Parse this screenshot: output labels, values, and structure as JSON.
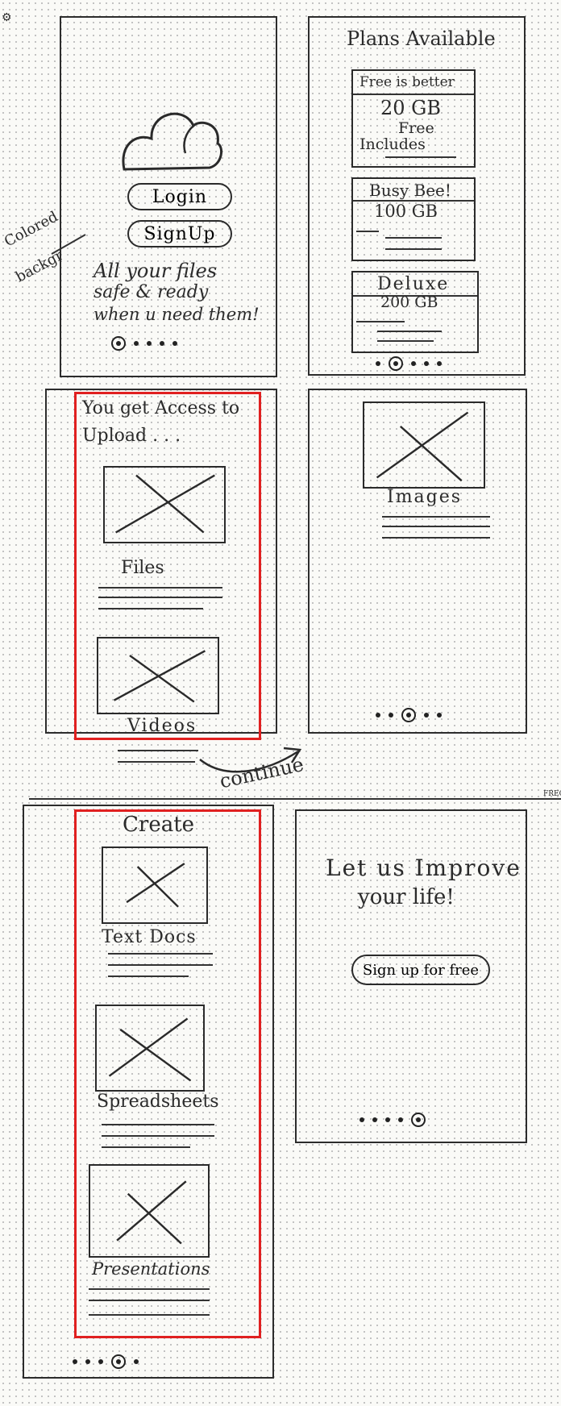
{
  "note": {
    "line1": "Colored",
    "line2": "backgr"
  },
  "screen1": {
    "login_label": "Login",
    "signup_label": "SignUp",
    "tagline_lines": [
      "All your files",
      "safe & ready",
      "when u need them!"
    ]
  },
  "screen2": {
    "title": "Plans Available",
    "plans": [
      {
        "name": "Free is better",
        "size": "20 GB",
        "line2": "Free",
        "line3": "Includes"
      },
      {
        "name": "Busy Bee!",
        "size": "100 GB"
      },
      {
        "name": "Deluxe",
        "size": "200 GB"
      }
    ]
  },
  "screen3": {
    "heading_lines": [
      "You get Access to",
      "Upload . . ."
    ],
    "items": [
      "Files",
      "Videos"
    ]
  },
  "screen4": {
    "item": "Images"
  },
  "continue_label": "continue",
  "screen5": {
    "title": "Create",
    "items": [
      "Text Docs",
      "Spreadsheets",
      "Presentations"
    ]
  },
  "screen6": {
    "heading_lines": [
      "Let us Improve",
      "your life!"
    ],
    "cta_label": "Sign up for free"
  },
  "corner_label": "FREC"
}
